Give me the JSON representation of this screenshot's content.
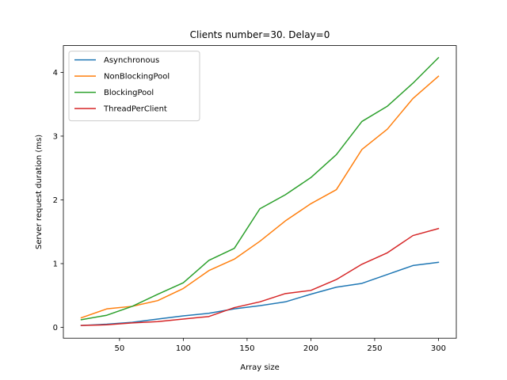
{
  "chart_data": {
    "type": "line",
    "title": "Clients number=30. Delay=0",
    "xlabel": "Array size",
    "ylabel": "Server request duration (ms)",
    "xlim": [
      6,
      314
    ],
    "ylim": [
      -0.17,
      4.42
    ],
    "xticks": [
      50,
      100,
      150,
      200,
      250,
      300
    ],
    "yticks": [
      0,
      1,
      2,
      3,
      4
    ],
    "grid": false,
    "legend_position": "upper left",
    "x": [
      20,
      40,
      60,
      80,
      100,
      120,
      140,
      160,
      180,
      200,
      220,
      240,
      260,
      280,
      300
    ],
    "series": [
      {
        "name": "Asynchronous",
        "color": "#1f77b4",
        "values": [
          0.03,
          0.05,
          0.08,
          0.13,
          0.18,
          0.22,
          0.29,
          0.34,
          0.4,
          0.52,
          0.63,
          0.69,
          0.83,
          0.97,
          1.02
        ]
      },
      {
        "name": "NonBlockingPool",
        "color": "#ff7f0e",
        "values": [
          0.15,
          0.29,
          0.33,
          0.42,
          0.61,
          0.89,
          1.07,
          1.35,
          1.67,
          1.94,
          2.16,
          2.79,
          3.11,
          3.59,
          3.94
        ]
      },
      {
        "name": "BlockingPool",
        "color": "#2ca02c",
        "values": [
          0.12,
          0.19,
          0.33,
          0.52,
          0.7,
          1.05,
          1.24,
          1.86,
          2.08,
          2.35,
          2.71,
          3.23,
          3.47,
          3.83,
          4.23
        ]
      },
      {
        "name": "ThreadPerClient",
        "color": "#d62728",
        "values": [
          0.03,
          0.04,
          0.07,
          0.09,
          0.13,
          0.17,
          0.31,
          0.4,
          0.53,
          0.58,
          0.75,
          0.99,
          1.17,
          1.44,
          1.55
        ]
      }
    ]
  }
}
